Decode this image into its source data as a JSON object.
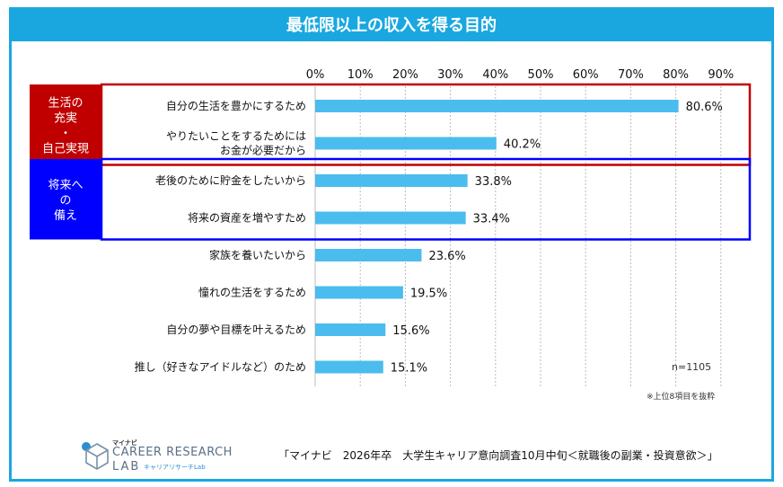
{
  "title": "最低限以上の収入を得る目的",
  "chart_data": {
    "type": "bar",
    "orientation": "horizontal",
    "title": "最低限以上の収入を得る目的",
    "xlim": [
      0,
      90
    ],
    "ticks": [
      "0%",
      "10%",
      "20%",
      "30%",
      "40%",
      "50%",
      "60%",
      "70%",
      "80%",
      "90%"
    ],
    "tick_values": [
      0,
      10,
      20,
      30,
      40,
      50,
      60,
      70,
      80,
      90
    ],
    "categories": [
      [
        "自分の生活を豊かにするため"
      ],
      [
        "やりたいことをするためには",
        "お金が必要だから"
      ],
      [
        "老後のために貯金をしたいから"
      ],
      [
        "将来の資産を増やすため"
      ],
      [
        "家族を養いたいから"
      ],
      [
        "憧れの生活をするため"
      ],
      [
        "自分の夢や目標を叶えるため"
      ],
      [
        "推し（好きなアイドルなど）のため"
      ]
    ],
    "values": [
      80.6,
      40.2,
      33.8,
      33.4,
      23.6,
      19.5,
      15.6,
      15.1
    ],
    "value_labels": [
      "80.6%",
      "40.2%",
      "33.8%",
      "33.4%",
      "23.6%",
      "19.5%",
      "15.6%",
      "15.1%"
    ],
    "bar_color": "#4bbcee",
    "groups": [
      {
        "label": [
          "生活の",
          "充実",
          "・",
          "自己実現"
        ],
        "items": [
          0,
          1
        ],
        "color": "#c00000"
      },
      {
        "label": [
          "将来へ",
          "の",
          "備え"
        ],
        "items": [
          2,
          3
        ],
        "color": "#0000ff"
      }
    ]
  },
  "sample_size": "n=1105",
  "note": "※上位8項目を抜粋",
  "source": "「マイナビ　2026年卒　大学生キャリア意向調査10月中旬＜就職後の副業・投資意欲＞」",
  "logo": {
    "small": "マイナビ",
    "main": "CAREER RESEARCH",
    "lab": "LAB",
    "sub": "キャリアリサーチLab",
    "color": "#5a6f87"
  }
}
